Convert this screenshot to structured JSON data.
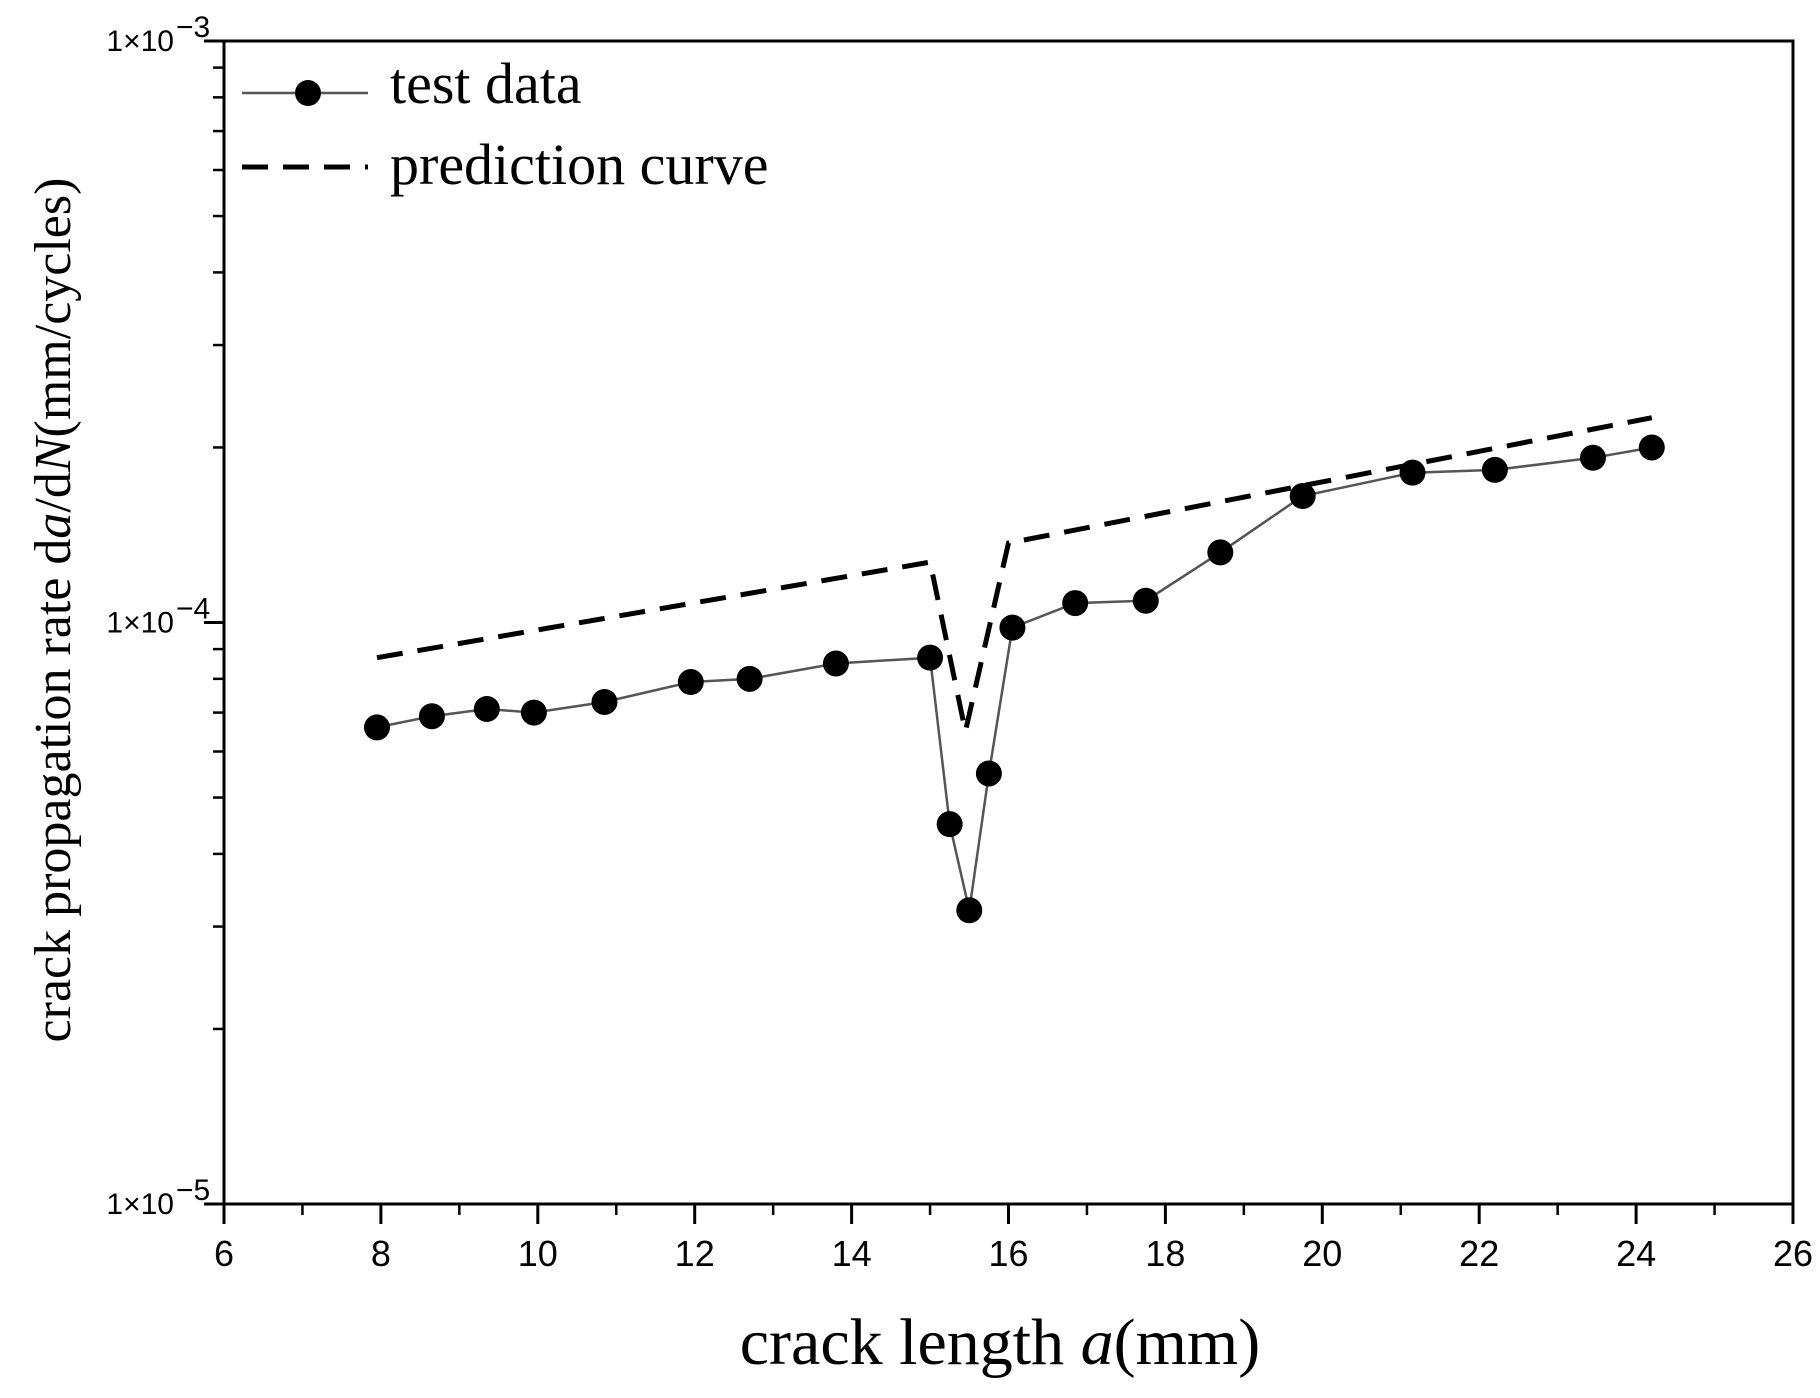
{
  "chart_data": {
    "type": "line",
    "x_axis": {
      "label_prefix": "crack length ",
      "label_var": "a",
      "label_unit": "(mm)",
      "range": [
        6,
        26
      ],
      "ticks": [
        6,
        8,
        10,
        12,
        14,
        16,
        18,
        20,
        22,
        24,
        26
      ],
      "tick_labels": [
        "6",
        "8",
        "10",
        "12",
        "14",
        "16",
        "18",
        "20",
        "22",
        "24",
        "26"
      ],
      "minor_step": 1
    },
    "y_axis": {
      "scale": "log",
      "label_prefix": "crack propagation rate  d",
      "label_var1": "a",
      "label_mid": "/d",
      "label_var2": "N",
      "label_unit": "(mm/cycles)",
      "range": [
        1e-05,
        0.001
      ],
      "ticks": [
        {
          "value": 0.001,
          "mantissa": "1×10",
          "exponent": "−3"
        },
        {
          "value": 0.0001,
          "mantissa": "1×10",
          "exponent": "−4"
        },
        {
          "value": 1e-05,
          "mantissa": "1×10",
          "exponent": "−5"
        }
      ]
    },
    "legend": {
      "position": "top-left",
      "entries": [
        {
          "label": "test data",
          "style": "line-marker"
        },
        {
          "label": "prediction curve",
          "style": "dashed"
        }
      ]
    },
    "series": [
      {
        "name": "test data",
        "color": "#000000",
        "line_color": "#555555",
        "marker": "circle",
        "x": [
          7.95,
          8.65,
          9.35,
          9.95,
          10.85,
          11.95,
          12.7,
          13.8,
          15.0,
          15.25,
          15.5,
          15.75,
          16.05,
          16.85,
          17.75,
          18.7,
          19.75,
          21.15,
          22.2,
          23.45,
          24.2
        ],
        "y": [
          6.6e-05,
          6.9e-05,
          7.1e-05,
          7e-05,
          7.3e-05,
          7.9e-05,
          8e-05,
          8.5e-05,
          8.7e-05,
          4.5e-05,
          3.2e-05,
          5.5e-05,
          9.8e-05,
          0.000108,
          0.000109,
          0.000132,
          0.000165,
          0.000181,
          0.000183,
          0.000192,
          0.0002
        ]
      },
      {
        "name": "prediction curve",
        "color": "#000000",
        "style": "dashed",
        "x": [
          7.95,
          15.0,
          15.45,
          16.0,
          24.2
        ],
        "y": [
          8.7e-05,
          0.000127,
          6.5e-05,
          0.000137,
          0.000225
        ]
      }
    ]
  }
}
